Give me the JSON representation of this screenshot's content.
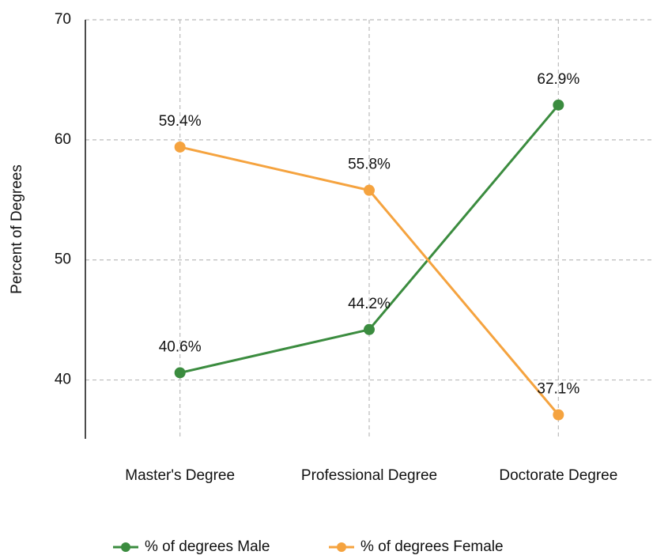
{
  "chart_data": {
    "type": "line",
    "y_label": "Percent of Degrees",
    "categories": [
      "Master's Degree",
      "Professional Degree",
      "Doctorate Degree"
    ],
    "series": [
      {
        "name": "% of degrees Male",
        "color": "#3b8c3f",
        "values": [
          40.6,
          44.2,
          62.9
        ],
        "value_labels": [
          "40.6%",
          "44.2%",
          "62.9%"
        ]
      },
      {
        "name": "% of degrees Female",
        "color": "#f5a33f",
        "values": [
          59.4,
          55.8,
          37.1
        ],
        "value_labels": [
          "59.4%",
          "55.8%",
          "37.1%"
        ]
      }
    ],
    "ylim": [
      35.1,
      70
    ],
    "yticks": [
      40,
      50,
      60,
      70
    ],
    "grid": true,
    "legend": "bottom"
  }
}
